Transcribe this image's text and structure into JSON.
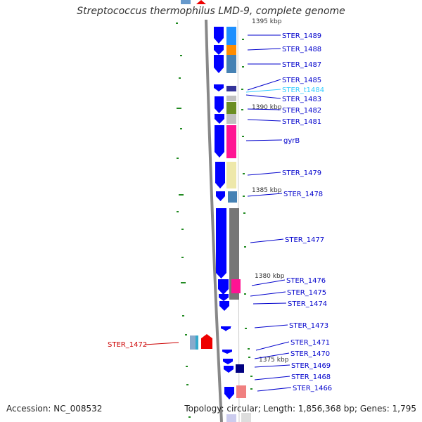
{
  "title": "Streptococcus thermophilus LMD-9, complete genome",
  "footer": {
    "accession": "Accession: NC_008532",
    "summary": "Topology: circular; Length: 1,856,368 bp; Genes: 1,795"
  },
  "colors": {
    "plus_strand": "#0000ff",
    "label_default": "#0000cc",
    "label_trna": "#33ccff",
    "label_highlight": "#cc0000",
    "tick": "#228b22",
    "backbone": "#888888"
  },
  "kbp_labels": [
    "1395 kbp",
    "1390 kbp",
    "1385 kbp",
    "1380 kbp",
    "1375 kbp"
  ],
  "genes": [
    {
      "id": "gene-ster-1489",
      "label": "STER_1489",
      "kind": "default"
    },
    {
      "id": "gene-ster-1488",
      "label": "STER_1488",
      "kind": "default"
    },
    {
      "id": "gene-ster-1487",
      "label": "STER_1487",
      "kind": "default"
    },
    {
      "id": "gene-ster-1485",
      "label": "STER_1485",
      "kind": "default"
    },
    {
      "id": "gene-ster-t1484",
      "label": "STER_t1484",
      "kind": "trna"
    },
    {
      "id": "gene-ster-1483",
      "label": "STER_1483",
      "kind": "default"
    },
    {
      "id": "gene-ster-1482",
      "label": "STER_1482",
      "kind": "default"
    },
    {
      "id": "gene-ster-1481",
      "label": "STER_1481",
      "kind": "default"
    },
    {
      "id": "gene-gyrb",
      "label": "gyrB",
      "kind": "default"
    },
    {
      "id": "gene-ster-1479",
      "label": "STER_1479",
      "kind": "default"
    },
    {
      "id": "gene-ster-1478",
      "label": "STER_1478",
      "kind": "default"
    },
    {
      "id": "gene-ster-1477",
      "label": "STER_1477",
      "kind": "default"
    },
    {
      "id": "gene-ster-1476",
      "label": "STER_1476",
      "kind": "default"
    },
    {
      "id": "gene-ster-1475",
      "label": "STER_1475",
      "kind": "default"
    },
    {
      "id": "gene-ster-1474",
      "label": "STER_1474",
      "kind": "default"
    },
    {
      "id": "gene-ster-1473",
      "label": "STER_1473",
      "kind": "default"
    },
    {
      "id": "gene-ster-1471",
      "label": "STER_1471",
      "kind": "default"
    },
    {
      "id": "gene-ster-1470",
      "label": "STER_1470",
      "kind": "default"
    },
    {
      "id": "gene-ster-1469",
      "label": "STER_1469",
      "kind": "default"
    },
    {
      "id": "gene-ster-1468",
      "label": "STER_1468",
      "kind": "default"
    },
    {
      "id": "gene-ster-1466",
      "label": "STER_1466",
      "kind": "default"
    },
    {
      "id": "gene-ster-1472",
      "label": "STER_1472",
      "kind": "highlight"
    }
  ]
}
